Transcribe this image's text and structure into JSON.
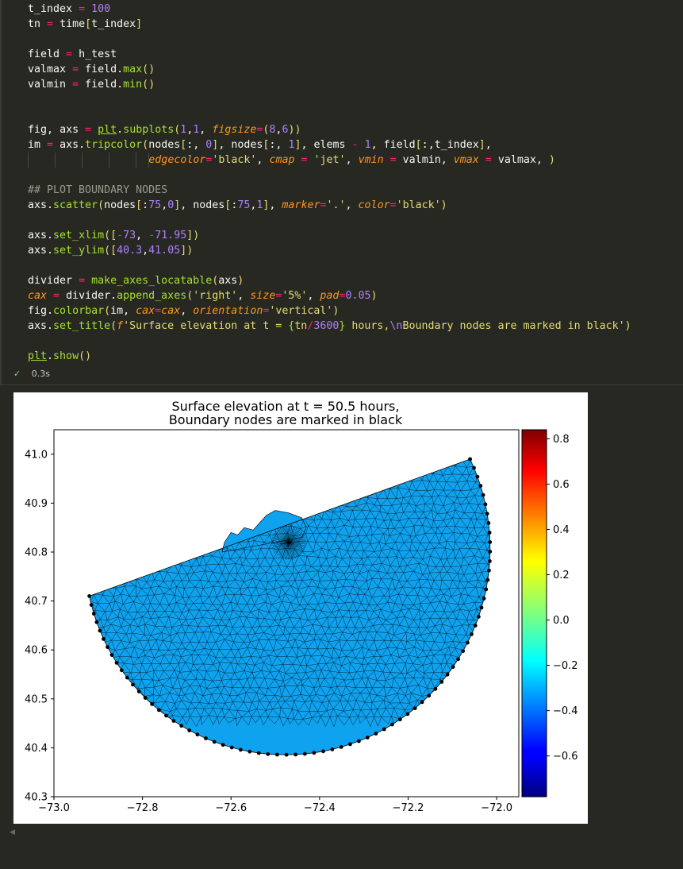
{
  "code": {
    "lines": [
      "t_index = 100",
      "tn = time[t_index]",
      "",
      "field = h_test",
      "valmax = field.max()",
      "valmin = field.min()",
      "",
      "",
      "fig, axs = plt.subplots(1,1, figsize=(8,6))",
      "im = axs.tripcolor(nodes[:, 0], nodes[:, 1], elems - 1, field[:,t_index],",
      "                   edgecolor='black', cmap = 'jet', vmin = valmin, vmax = valmax, )",
      "",
      "## PLOT BOUNDARY NODES",
      "axs.scatter(nodes[:75,0], nodes[:75,1], marker='.', color='black')",
      "",
      "axs.set_xlim([-73, -71.95])",
      "axs.set_ylim([40.3,41.05])",
      "",
      "divider = make_axes_locatable(axs)",
      "cax = divider.append_axes('right', size='5%', pad=0.05)",
      "fig.colorbar(im, cax=cax, orientation='vertical')",
      "axs.set_title(f'Surface elevation at t = {tn/3600} hours,\\nBoundary nodes are marked in black')",
      "",
      "plt.show()"
    ]
  },
  "status": {
    "check_icon": "check-icon",
    "duration": "0.3s"
  },
  "chart_data": {
    "type": "tripcolor",
    "title": "Surface elevation at t = 50.5 hours,\nBoundary nodes are marked in black",
    "title_lines": [
      "Surface elevation at t = 50.5 hours,",
      "Boundary nodes are marked in black"
    ],
    "xlim": [
      -73,
      -71.95
    ],
    "ylim": [
      40.3,
      41.05
    ],
    "x_ticks": [
      -73.0,
      -72.8,
      -72.6,
      -72.4,
      -72.2,
      -72.0
    ],
    "x_tick_labels": [
      "−73.0",
      "−72.8",
      "−72.6",
      "−72.4",
      "−72.2",
      "−72.0"
    ],
    "y_ticks": [
      40.3,
      40.4,
      40.5,
      40.6,
      40.7,
      40.8,
      40.9,
      41.0
    ],
    "y_tick_labels": [
      "40.3",
      "40.4",
      "40.5",
      "40.6",
      "40.7",
      "40.8",
      "40.9",
      "41.0"
    ],
    "mesh_fill_color": "#0fa2ee",
    "edge_color": "#000000",
    "boundary_marker_color": "#000000",
    "boundary_points": 75,
    "domain": {
      "center": [
        -72.485,
        40.8
      ],
      "radius_lat": 0.415,
      "chord_start": [
        -72.92,
        40.71
      ],
      "chord_end": [
        -72.06,
        40.99
      ]
    },
    "island": [
      [
        -72.62,
        40.8
      ],
      [
        -72.615,
        40.82
      ],
      [
        -72.6,
        40.84
      ],
      [
        -72.585,
        40.835
      ],
      [
        -72.57,
        40.85
      ],
      [
        -72.55,
        40.845
      ],
      [
        -72.535,
        40.86
      ],
      [
        -72.52,
        40.875
      ],
      [
        -72.5,
        40.885
      ],
      [
        -72.47,
        40.88
      ],
      [
        -72.455,
        40.875
      ],
      [
        -72.44,
        40.87
      ],
      [
        -72.43,
        40.85
      ],
      [
        -72.44,
        40.83
      ],
      [
        -72.62,
        40.8
      ]
    ],
    "colorbar": {
      "cmap": "jet",
      "vmin": -0.78,
      "vmax": 0.84,
      "ticks": [
        0.8,
        0.6,
        0.4,
        0.2,
        0.0,
        -0.2,
        -0.4,
        -0.6
      ],
      "tick_labels": [
        "0.8",
        "0.6",
        "0.4",
        "0.2",
        "0.0",
        "−0.2",
        "−0.4",
        "−0.6"
      ],
      "orientation": "vertical"
    }
  }
}
